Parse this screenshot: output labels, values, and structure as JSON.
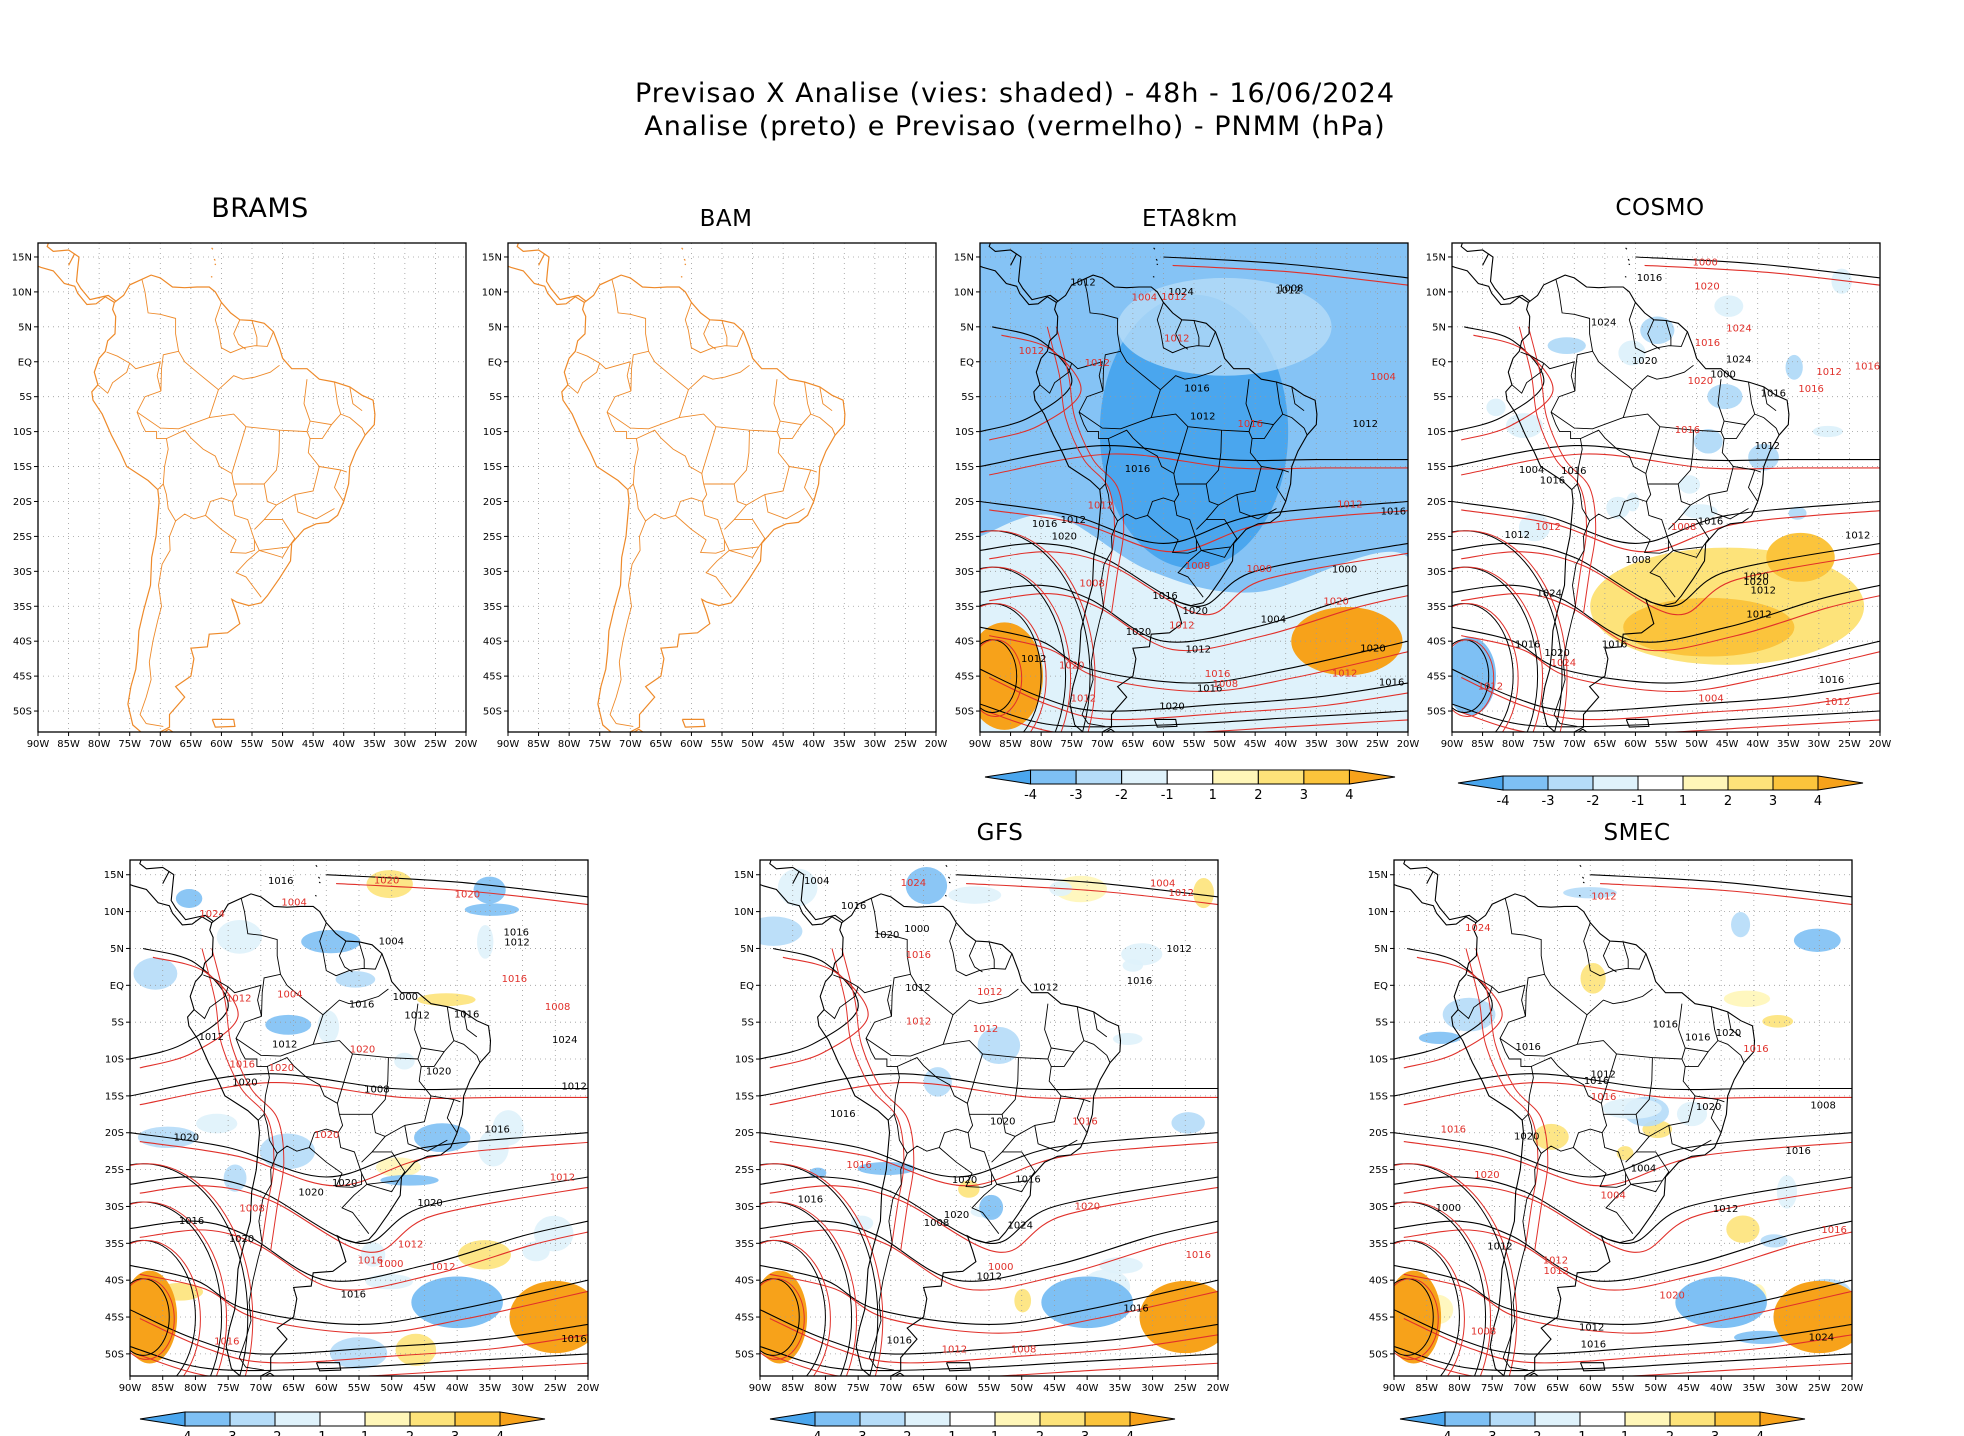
{
  "header": {
    "line1": "Previsao X Analise (vies: shaded) - 48h - 16/06/2024",
    "line2": "Analise (preto) e Previsao (vermelho) - PNMM (hPa)"
  },
  "axes": {
    "lat_labels": [
      "15N",
      "10N",
      "5N",
      "EQ",
      "5S",
      "10S",
      "15S",
      "20S",
      "25S",
      "30S",
      "35S",
      "40S",
      "45S",
      "50S"
    ],
    "lon_labels": [
      "90W",
      "85W",
      "80W",
      "75W",
      "70W",
      "65W",
      "60W",
      "55W",
      "50W",
      "45W",
      "40W",
      "35W",
      "30W",
      "25W",
      "20W"
    ]
  },
  "colorbar": {
    "ticks": [
      "-4",
      "-3",
      "-2",
      "-1",
      "1",
      "2",
      "3",
      "4"
    ],
    "colors": [
      "#4aa6ee",
      "#7ec0f4",
      "#b5dcf8",
      "#dff2fb",
      "#ffffff",
      "#fff6b8",
      "#fde37a",
      "#fbc43c",
      "#f7a21a"
    ]
  },
  "colors": {
    "map_outline_blank": "#ee8a2a",
    "analysis_contour": "#000000",
    "forecast_contour": "#e0302a"
  },
  "panels": [
    {
      "id": "brams",
      "title": "BRAMS",
      "has_data": false,
      "has_colorbar": false,
      "labels_black": [],
      "labels_red": []
    },
    {
      "id": "bam",
      "title": "BAM",
      "has_data": false,
      "has_colorbar": false,
      "labels_black": [],
      "labels_red": []
    },
    {
      "id": "eta8km",
      "title": "ETA8km",
      "has_data": true,
      "has_colorbar": true,
      "bias": "negative",
      "labels_black": [
        "1016",
        "1012",
        "1012",
        "1012",
        "1012",
        "1016",
        "1016",
        "1012",
        "1012",
        "1020",
        "1020",
        "1024",
        "1020",
        "1016",
        "1016",
        "1020",
        "1016",
        "1012",
        "1008",
        "1004",
        "1000",
        "1020",
        "1016"
      ],
      "labels_red": [
        "1012",
        "1012",
        "1012",
        "1008",
        "1012",
        "1020",
        "1012",
        "1012",
        "1016",
        "1008",
        "1012",
        "1004",
        "1020",
        "1012",
        "1016",
        "1008",
        "1004",
        "1000",
        "1012"
      ]
    },
    {
      "id": "cosmo",
      "title": "COSMO",
      "has_data": true,
      "has_colorbar": true,
      "bias": "positive",
      "labels_black": [
        "1016",
        "1012",
        "1016",
        "1012",
        "1012",
        "1016",
        "1012",
        "1016",
        "1020",
        "1024",
        "1016",
        "1020",
        "1016",
        "1024",
        "1016",
        "1020",
        "1012",
        "1008",
        "1000",
        "1004",
        "1016",
        "1020",
        "1024"
      ],
      "labels_red": [
        "1012",
        "1012",
        "1024",
        "1016",
        "1016",
        "1020",
        "1024",
        "1020",
        "1016",
        "1012",
        "1008",
        "1004",
        "1000",
        "1016",
        "1012"
      ]
    },
    {
      "id": "row2a",
      "title": "",
      "has_data": true,
      "has_colorbar": true,
      "bias": "mixed",
      "labels_black": [
        "1016",
        "1016",
        "1012",
        "1016",
        "1012",
        "1012",
        "1016",
        "1016",
        "1020",
        "1020",
        "1020",
        "1024",
        "1020",
        "1016",
        "1020",
        "1020",
        "1016",
        "1012",
        "1008",
        "1004",
        "1000",
        "1012",
        "1016",
        "1020"
      ],
      "labels_red": [
        "1016",
        "1012",
        "1016",
        "1020",
        "1012",
        "1024",
        "1020",
        "1020",
        "1012",
        "1016",
        "1008",
        "1004",
        "1008",
        "1004",
        "1000",
        "1020",
        "1016",
        "1012",
        "1020"
      ]
    },
    {
      "id": "gfs",
      "title": "GFS",
      "has_data": true,
      "has_colorbar": true,
      "bias": "light",
      "labels_black": [
        "1016",
        "1012",
        "1012",
        "1016",
        "1016",
        "1012",
        "1020",
        "1024",
        "1016",
        "1016",
        "1020",
        "1016",
        "1012",
        "1008",
        "1004",
        "1000",
        "1020",
        "1016",
        "1020"
      ],
      "labels_red": [
        "1016",
        "1012",
        "1016",
        "1012",
        "1020",
        "1024",
        "1016",
        "1012",
        "1016",
        "1012",
        "1008",
        "1004",
        "1000",
        "1012"
      ]
    },
    {
      "id": "smec",
      "title": "SMEC",
      "has_data": true,
      "has_colorbar": true,
      "bias": "light",
      "labels_black": [
        "1016",
        "1012",
        "1016",
        "1016",
        "1012",
        "1020",
        "1024",
        "1016",
        "1016",
        "1012",
        "1008",
        "1004",
        "1000",
        "1020",
        "1016",
        "1020",
        "1012"
      ],
      "labels_red": [
        "1016",
        "1012",
        "1016",
        "1012",
        "1020",
        "1024",
        "1016",
        "1012",
        "1008",
        "1004",
        "1020",
        "1016"
      ]
    }
  ]
}
